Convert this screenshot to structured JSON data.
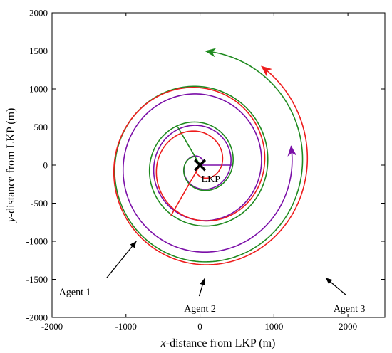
{
  "chart_data": {
    "type": "line",
    "title": "",
    "xlabel_var": "x",
    "xlabel_rest": "-distance from LKP (m)",
    "ylabel_var": "y",
    "ylabel_rest": "-distance from LKP (m)",
    "xlim": [
      -2000,
      2500
    ],
    "ylim": [
      -2000,
      2000
    ],
    "xticks": [
      -2000,
      -1000,
      0,
      1000,
      2000
    ],
    "yticks": [
      -2000,
      -1500,
      -1000,
      -500,
      0,
      500,
      1000,
      1500,
      2000
    ],
    "grid": false,
    "origin_marker": {
      "label": "LKP",
      "x": 0,
      "y": 0
    },
    "series": [
      {
        "color": "#7b0fa8",
        "start": [
          430,
          0
        ],
        "lead_in": [
          [
            0,
            0
          ]
        ],
        "spiral": {
          "theta_start": 0,
          "theta_end": 19.05,
          "r0": 0,
          "dr_per_rad": 66,
          "direction": "ccw"
        }
      },
      {
        "color": "#1f8a1f",
        "start": [
          0,
          0
        ],
        "lead_in": [
          [
            -300,
            500
          ]
        ],
        "spiral": {
          "theta_start": 2.11,
          "theta_end": 20.37,
          "r0": 130,
          "dr_per_rad": 75,
          "direction": "ccw"
        }
      },
      {
        "color": "#ee1c1c",
        "start": [
          0,
          0
        ],
        "lead_in": [
          [
            -390,
            -660
          ]
        ],
        "spiral": {
          "theta_start": 4.18,
          "theta_end": 19.85,
          "r0": 100,
          "dr_per_rad": 92,
          "direction": "ccw"
        }
      }
    ],
    "annotations": [
      {
        "name": "agent-1",
        "text": "Agent 1",
        "text_x": -1690,
        "text_y": -1660,
        "arrow_from": [
          -1260,
          -1480
        ],
        "arrow_to": [
          -860,
          -1000
        ]
      },
      {
        "name": "agent-2",
        "text": "Agent 2",
        "text_x": 0,
        "text_y": -1880,
        "arrow_from": [
          -10,
          -1720
        ],
        "arrow_to": [
          60,
          -1490
        ]
      },
      {
        "name": "agent-3",
        "text": "Agent 3",
        "text_x": 2020,
        "text_y": -1880,
        "arrow_from": [
          1980,
          -1710
        ],
        "arrow_to": [
          1700,
          -1480
        ]
      }
    ]
  }
}
